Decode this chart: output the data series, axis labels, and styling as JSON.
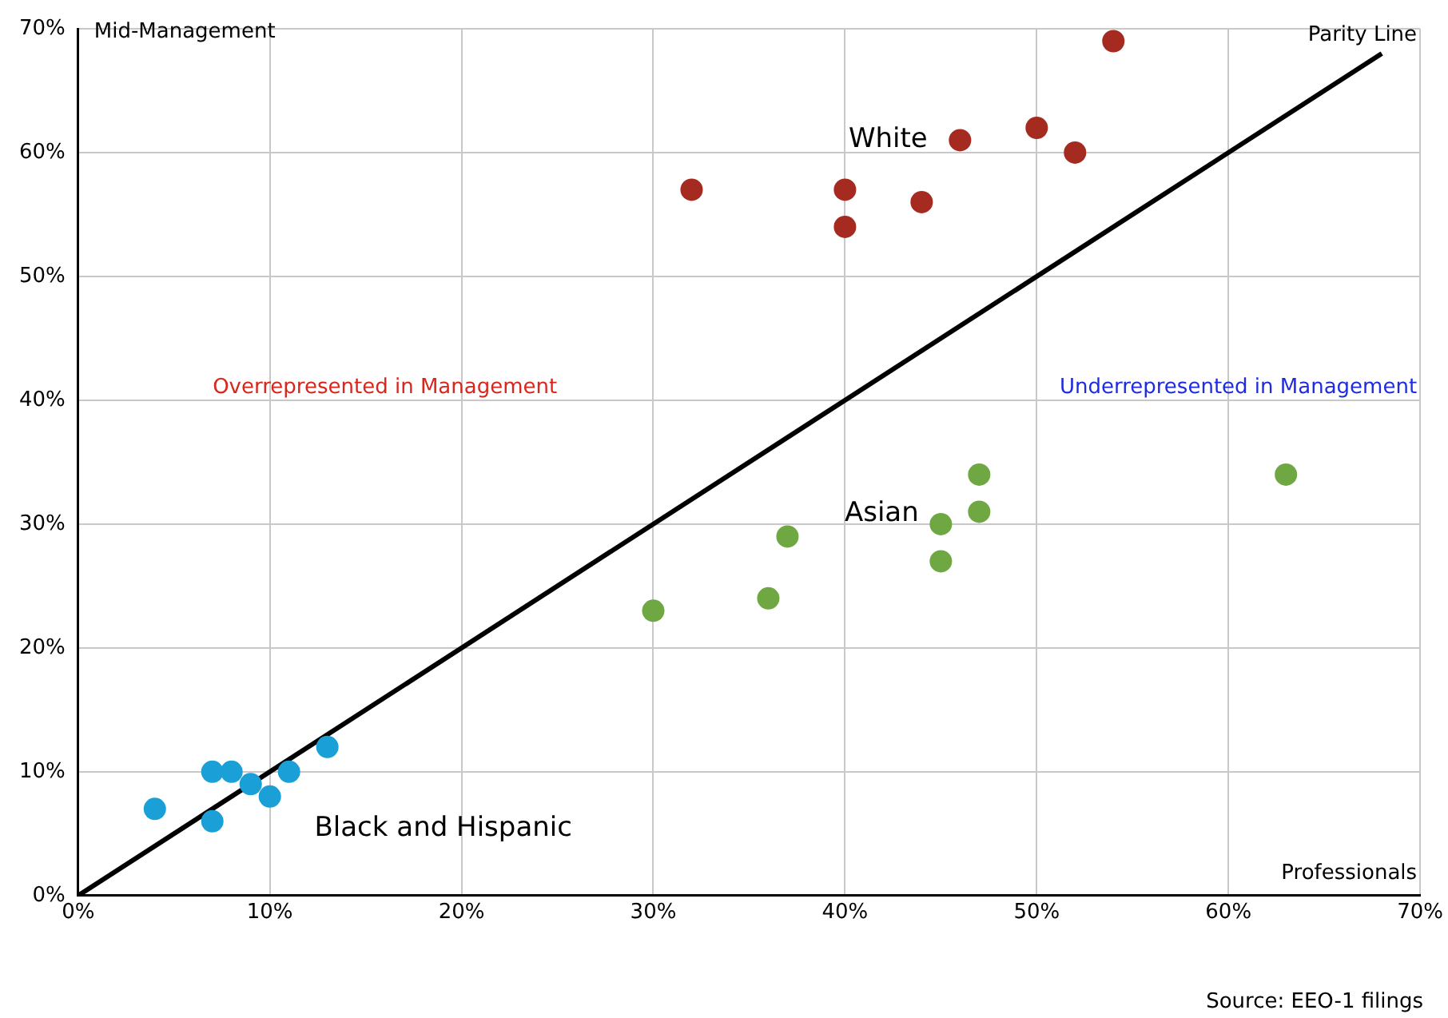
{
  "chart_data": {
    "type": "scatter",
    "xlabel": "Professionals",
    "ylabel": "Mid-Management",
    "xlim": [
      0,
      70
    ],
    "ylim": [
      0,
      70
    ],
    "xticks": [
      {
        "value": 0,
        "label": "0%"
      },
      {
        "value": 10,
        "label": "10%"
      },
      {
        "value": 20,
        "label": "20%"
      },
      {
        "value": 30,
        "label": "30%"
      },
      {
        "value": 40,
        "label": "40%"
      },
      {
        "value": 50,
        "label": "50%"
      },
      {
        "value": 60,
        "label": "60%"
      },
      {
        "value": 70,
        "label": "70%"
      }
    ],
    "yticks": [
      {
        "value": 0,
        "label": "0%"
      },
      {
        "value": 10,
        "label": "10%"
      },
      {
        "value": 20,
        "label": "20%"
      },
      {
        "value": 30,
        "label": "30%"
      },
      {
        "value": 40,
        "label": "40%"
      },
      {
        "value": 50,
        "label": "50%"
      },
      {
        "value": 60,
        "label": "60%"
      },
      {
        "value": 70,
        "label": "70%"
      }
    ],
    "grid": true,
    "legend": false,
    "marker": "circle",
    "series": [
      {
        "name": "White",
        "color": "#a52a1f",
        "x": [
          32,
          40,
          40,
          44,
          46,
          50,
          52,
          54
        ],
        "values": [
          57,
          57,
          54,
          56,
          61,
          62,
          60,
          69
        ]
      },
      {
        "name": "Asian",
        "color": "#6fa843",
        "x": [
          30,
          36,
          37,
          45,
          45,
          47,
          47,
          63
        ],
        "values": [
          23,
          24,
          29,
          30,
          27,
          34,
          31,
          34
        ]
      },
      {
        "name": "Black and Hispanic",
        "color": "#1a9fd6",
        "x": [
          4,
          7,
          7,
          8,
          9,
          10,
          11,
          13
        ],
        "values": [
          7,
          10,
          6,
          10,
          9,
          8,
          10,
          12
        ]
      },
      {
        "name": "Parity Line",
        "type": "line",
        "color": "#000000",
        "line_style": "solid",
        "marker": "none",
        "x": [
          0,
          68
        ],
        "values": [
          0,
          68
        ]
      }
    ],
    "annotations": [
      "Overrepresented in Management",
      "Underrepresented in Management",
      "Source: EEO-1 filings"
    ]
  }
}
